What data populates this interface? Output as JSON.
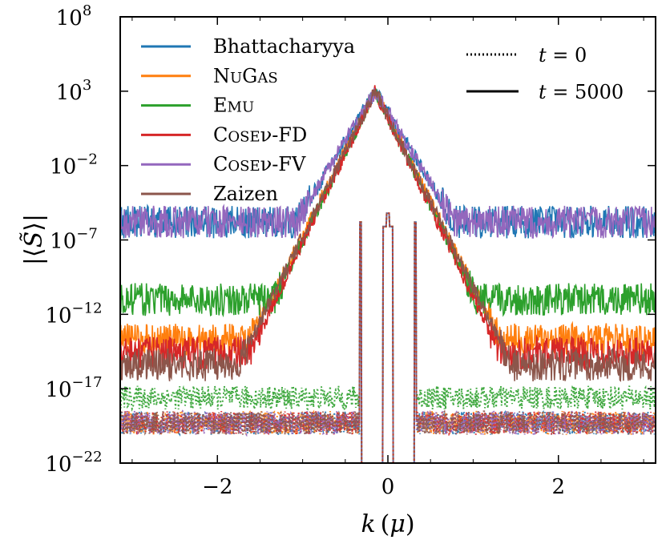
{
  "chart_data": {
    "type": "line",
    "title": "",
    "xlabel": "k (μ)",
    "ylabel": "|⟨S̃⟩|",
    "xlim": [
      -3.14,
      3.14
    ],
    "ylim_log10": [
      -22,
      8
    ],
    "yscale": "log",
    "x_ticks": [
      -2,
      0,
      2
    ],
    "x_tick_labels": [
      "−2",
      "0",
      "2"
    ],
    "y_ticks_log10": [
      -22,
      -17,
      -12,
      -7,
      -2,
      3,
      8
    ],
    "y_tick_labels": [
      {
        "base": "10",
        "exp": "−22"
      },
      {
        "base": "10",
        "exp": "−17"
      },
      {
        "base": "10",
        "exp": "−12"
      },
      {
        "base": "10",
        "exp": "−7"
      },
      {
        "base": "10",
        "exp": "−2"
      },
      {
        "base": "10",
        "exp": "3"
      },
      {
        "base": "10",
        "exp": "8"
      }
    ],
    "line_styles": [
      {
        "label": "t = 0",
        "style": "dotted"
      },
      {
        "label": "t = 5000",
        "style": "solid"
      }
    ],
    "series": [
      {
        "name": "Bhattacharyya",
        "color": "#1f77b4",
        "t5000": {
          "peak_x": -0.15,
          "peak_log10": 3,
          "floor_log10": -5.8,
          "slope_per_unit": 9.5
        },
        "t0": {
          "floor_log10": -19.3,
          "spike_log10": -5.2,
          "edge_log10": -5.8
        }
      },
      {
        "name": "NuGas",
        "color": "#ff7f0e",
        "t5000": {
          "peak_x": -0.15,
          "peak_log10": 3,
          "floor_log10": -13.7,
          "slope_per_unit": 11.4
        },
        "t0": {
          "floor_log10": -19.3,
          "spike_log10": -5.2,
          "edge_log10": -5.8
        }
      },
      {
        "name": "Emu",
        "color": "#2ca02c",
        "t5000": {
          "peak_x": -0.15,
          "peak_log10": 3,
          "floor_log10": -11.0,
          "slope_per_unit": 11.8
        },
        "t0": {
          "floor_log10": -17.6,
          "spike_log10": -5.2,
          "edge_log10": -5.8
        }
      },
      {
        "name": "Cosenu-FD",
        "color": "#d62728",
        "t5000": {
          "peak_x": -0.15,
          "peak_log10": 3,
          "floor_log10": -14.6,
          "slope_per_unit": 12.0
        },
        "t0": {
          "floor_log10": -19.3,
          "spike_log10": -5.2,
          "edge_log10": -5.8
        }
      },
      {
        "name": "Cosenu-FV",
        "color": "#9467bd",
        "t5000": {
          "peak_x": -0.15,
          "peak_log10": 3,
          "floor_log10": -5.8,
          "slope_per_unit": 9.5
        },
        "t0": {
          "floor_log10": -19.3,
          "spike_log10": -5.2,
          "edge_log10": -5.8
        }
      },
      {
        "name": "Zaizen",
        "color": "#8c564b",
        "t5000": {
          "peak_x": -0.15,
          "peak_log10": 3,
          "floor_log10": -15.4,
          "slope_per_unit": 11.5
        },
        "t0": {
          "floor_log10": -19.3,
          "spike_log10": -5.2,
          "edge_log10": -5.8
        }
      }
    ],
    "legend": {
      "placement": "top-left",
      "entries": [
        {
          "main": "Bhattacharyya",
          "small": ""
        },
        {
          "main": "N",
          "small": "UGAS",
          "parts": [
            "N",
            "U",
            "G",
            "AS"
          ]
        },
        {
          "main": "E",
          "small": "MU"
        },
        {
          "main": "C",
          "small": "OSE",
          "suffix": "ν-FD"
        },
        {
          "main": "C",
          "small": "OSE",
          "suffix": "ν-FV"
        },
        {
          "main": "Zaizen",
          "small": ""
        }
      ]
    },
    "style_legend": {
      "placement": "top-right",
      "entries": [
        {
          "label_var": "t",
          "label_rest": " = 0",
          "style": "dotted"
        },
        {
          "label_var": "t",
          "label_rest": " = 5000",
          "style": "solid"
        }
      ]
    }
  }
}
